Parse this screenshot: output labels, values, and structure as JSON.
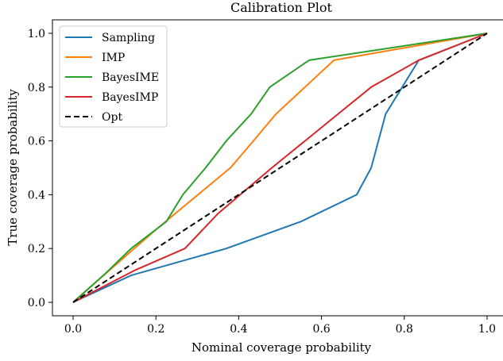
{
  "chart_data": {
    "type": "line",
    "title": "Calibration Plot",
    "xlabel": "Nominal coverage probability",
    "ylabel": "True coverage probability",
    "xlim": [
      -0.05,
      1.05
    ],
    "ylim": [
      -0.05,
      1.05
    ],
    "xticks": [
      0.0,
      0.2,
      0.4,
      0.6,
      0.8,
      1.0
    ],
    "yticks": [
      0.0,
      0.2,
      0.4,
      0.6,
      0.8,
      1.0
    ],
    "xtick_labels": [
      "0.0",
      "0.2",
      "0.4",
      "0.6",
      "0.8",
      "1.0"
    ],
    "ytick_labels": [
      "0.0",
      "0.2",
      "0.4",
      "0.6",
      "0.8",
      "1.0"
    ],
    "grid": false,
    "legend_position": "upper left",
    "series": [
      {
        "name": "Sampling",
        "color": "#1f77b4",
        "style": "solid",
        "x": [
          0.0,
          0.14,
          0.37,
          0.55,
          0.685,
          0.72,
          0.755,
          0.835,
          1.0
        ],
        "y": [
          0.0,
          0.1,
          0.2,
          0.3,
          0.4,
          0.5,
          0.7,
          0.9,
          1.0
        ]
      },
      {
        "name": "IMP",
        "color": "#ff7f0e",
        "style": "solid",
        "x": [
          0.0,
          0.14,
          0.2,
          0.27,
          0.38,
          0.43,
          0.49,
          0.56,
          0.63,
          1.0
        ],
        "y": [
          0.0,
          0.19,
          0.27,
          0.36,
          0.5,
          0.59,
          0.7,
          0.8,
          0.9,
          1.0
        ]
      },
      {
        "name": "BayesIME",
        "color": "#2ca02c",
        "style": "solid",
        "x": [
          0.0,
          0.08,
          0.14,
          0.225,
          0.265,
          0.32,
          0.37,
          0.43,
          0.475,
          0.57,
          1.0
        ],
        "y": [
          0.0,
          0.11,
          0.2,
          0.3,
          0.4,
          0.5,
          0.6,
          0.7,
          0.8,
          0.9,
          1.0
        ]
      },
      {
        "name": "BayesIMP",
        "color": "#d62728",
        "style": "solid",
        "x": [
          0.0,
          0.15,
          0.27,
          0.35,
          0.48,
          0.56,
          0.72,
          0.835,
          1.0
        ],
        "y": [
          0.0,
          0.12,
          0.2,
          0.33,
          0.5,
          0.6,
          0.8,
          0.9,
          1.0
        ]
      },
      {
        "name": "Opt",
        "color": "#000000",
        "style": "dashed",
        "x": [
          0.0,
          1.0
        ],
        "y": [
          0.0,
          1.0
        ]
      }
    ]
  }
}
